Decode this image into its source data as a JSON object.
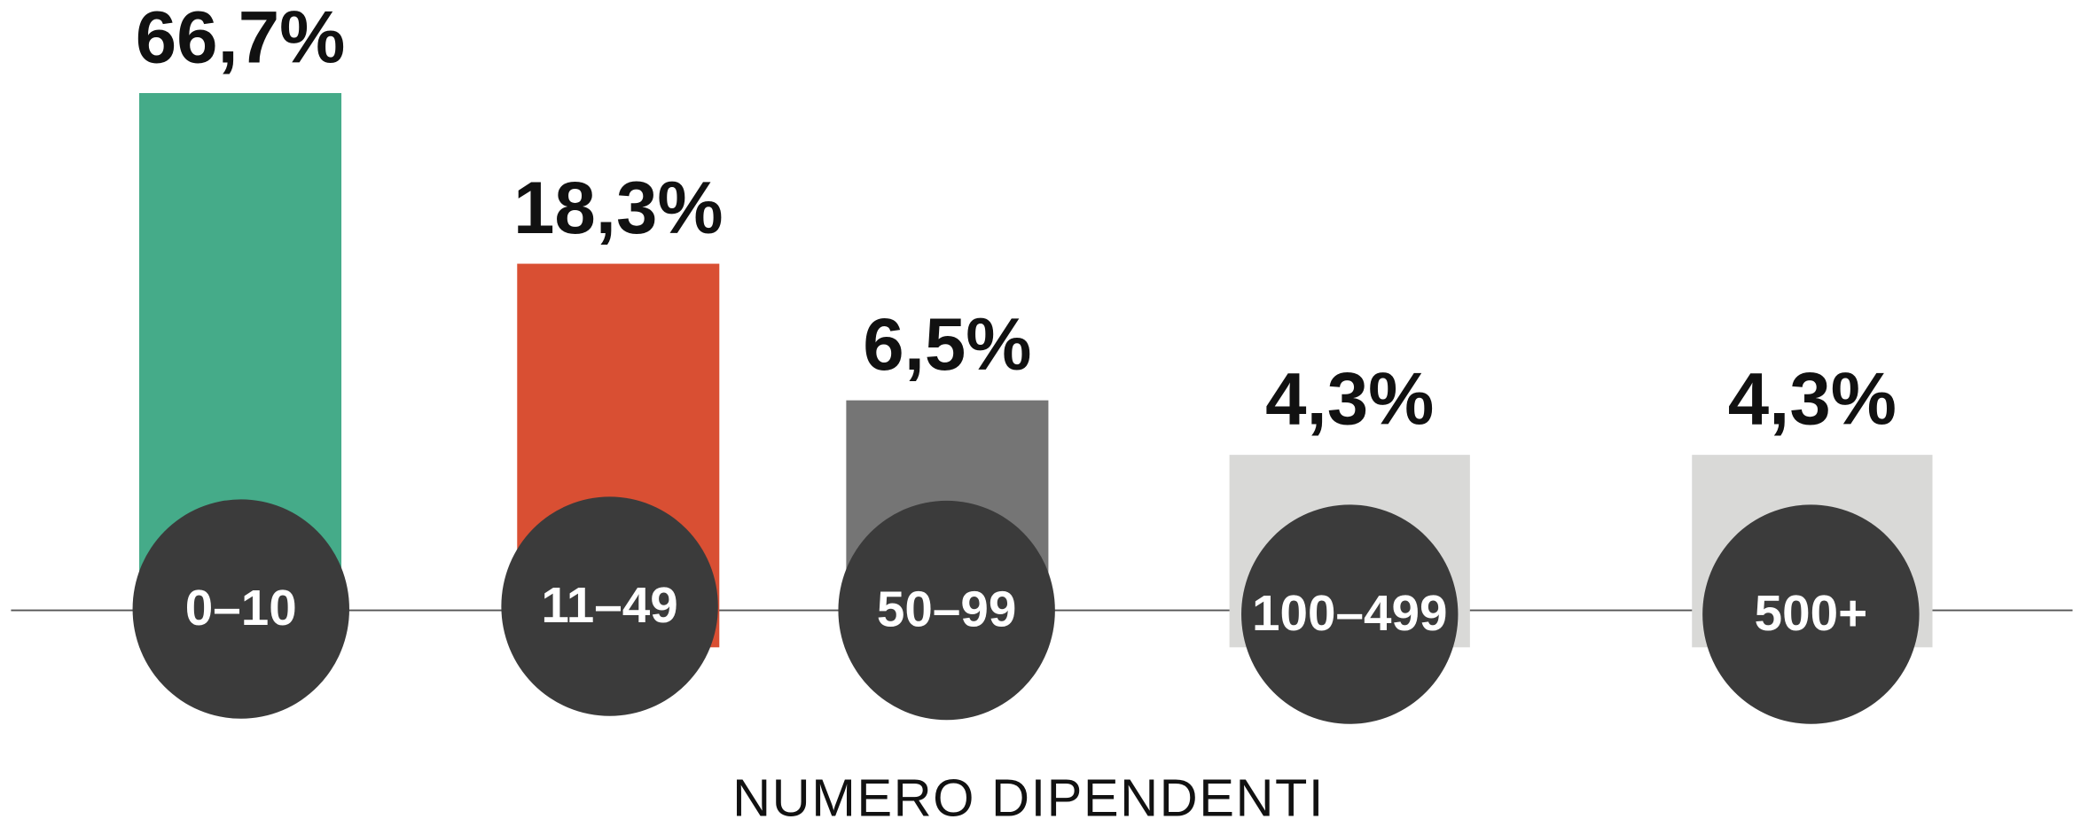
{
  "chart_data": {
    "type": "bar",
    "xlabel": "NUMERO DIPENDENTI",
    "categories": [
      "0–10",
      "11–49",
      "50–99",
      "100–499",
      "500+"
    ],
    "values": [
      66.7,
      18.3,
      6.5,
      4.3,
      4.3
    ],
    "value_labels": [
      "66,7%",
      "18,3%",
      "6,5%",
      "4,3%",
      "4,3%"
    ],
    "colors": [
      "#45ab89",
      "#d94f33",
      "#757575",
      "#d9d9d7",
      "#d9d9d7"
    ],
    "log_scale": true,
    "ylim": [
      1,
      100
    ]
  }
}
